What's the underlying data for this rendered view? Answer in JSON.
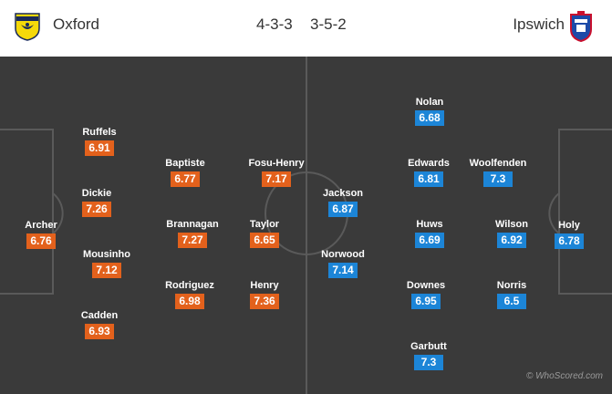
{
  "match": {
    "home_team": "Oxford",
    "away_team": "Ipswich",
    "home_formation": "4-3-3",
    "away_formation": "3-5-2"
  },
  "colors": {
    "home_rating": "#e3611c",
    "away_rating": "#1c85d7",
    "pitch": "#3a3a3a"
  },
  "icons": {
    "home_crest": "oxford-crest-icon",
    "away_crest": "ipswich-crest-icon"
  },
  "home_players": [
    {
      "name": "Archer",
      "rating": "6.76"
    },
    {
      "name": "Ruffels",
      "rating": "6.91"
    },
    {
      "name": "Dickie",
      "rating": "7.26"
    },
    {
      "name": "Mousinho",
      "rating": "7.12"
    },
    {
      "name": "Cadden",
      "rating": "6.93"
    },
    {
      "name": "Baptiste",
      "rating": "6.77"
    },
    {
      "name": "Brannagan",
      "rating": "7.27"
    },
    {
      "name": "Rodriguez",
      "rating": "6.98"
    },
    {
      "name": "Fosu-Henry",
      "rating": "7.17"
    },
    {
      "name": "Taylor",
      "rating": "6.65"
    },
    {
      "name": "Henry",
      "rating": "7.36"
    }
  ],
  "away_players": [
    {
      "name": "Holy",
      "rating": "6.78"
    },
    {
      "name": "Woolfenden",
      "rating": "7.3"
    },
    {
      "name": "Wilson",
      "rating": "6.92"
    },
    {
      "name": "Norris",
      "rating": "6.5"
    },
    {
      "name": "Nolan",
      "rating": "6.68"
    },
    {
      "name": "Edwards",
      "rating": "6.81"
    },
    {
      "name": "Huws",
      "rating": "6.69"
    },
    {
      "name": "Downes",
      "rating": "6.95"
    },
    {
      "name": "Garbutt",
      "rating": "7.3"
    },
    {
      "name": "Jackson",
      "rating": "6.87"
    },
    {
      "name": "Norwood",
      "rating": "7.14"
    }
  ],
  "credit": "© WhoScored.com"
}
